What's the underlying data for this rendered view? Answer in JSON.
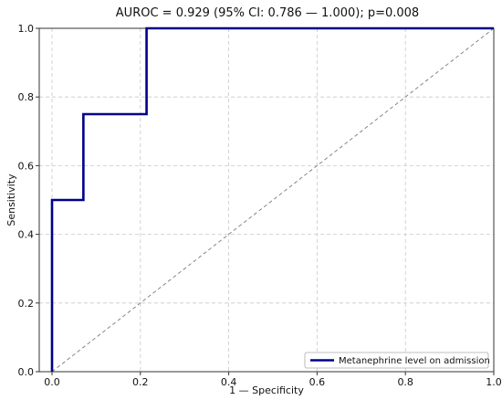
{
  "chart_data": {
    "type": "line",
    "title": "AUROC = 0.929 (95% CI: 0.786 — 1.000); p=0.008",
    "xlabel": "1 — Specificity",
    "ylabel": "Sensitivity",
    "xlim": [
      0,
      1
    ],
    "ylim": [
      0,
      1
    ],
    "x_ticks": [
      "0.0",
      "0.2",
      "0.4",
      "0.6",
      "0.8",
      "1.0"
    ],
    "y_ticks": [
      "0.0",
      "0.2",
      "0.4",
      "0.6",
      "0.8",
      "1.0"
    ],
    "grid": true,
    "legend_position": "bottom-right",
    "series": [
      {
        "name": "Metanephrine level on admission",
        "color": "#00008b",
        "x": [
          0.0,
          0.0,
          0.071,
          0.071,
          0.214,
          0.214,
          1.0
        ],
        "y": [
          0.0,
          0.5,
          0.5,
          0.75,
          0.75,
          1.0,
          1.0
        ]
      }
    ],
    "reference_line": {
      "color": "#7a7a7a",
      "style": "dashed",
      "x": [
        0,
        1
      ],
      "y": [
        0,
        1
      ]
    }
  }
}
